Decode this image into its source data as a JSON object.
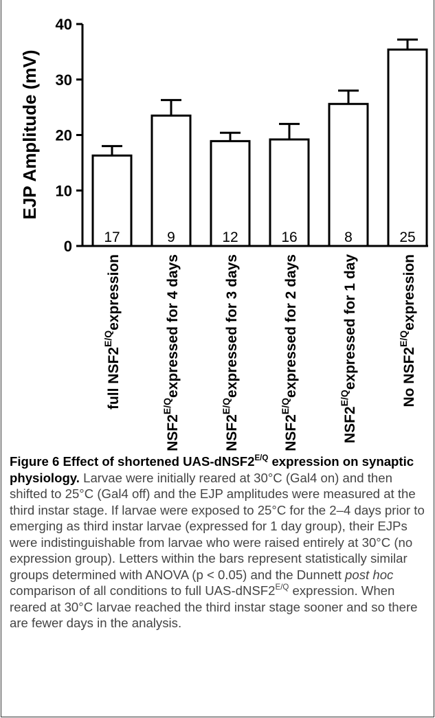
{
  "chart_data": {
    "type": "bar",
    "ylabel": "EJP Amplitude (mV)",
    "ylim": [
      0,
      40
    ],
    "yticks": [
      "0",
      "10",
      "20",
      "30",
      "40"
    ],
    "categories": [
      {
        "main": "full NSF2",
        "sup": "E/Q",
        "rest": "expression"
      },
      {
        "main": "NSF2",
        "sup": "E/Q",
        "rest": "expressed for 4 days"
      },
      {
        "main": "NSF2",
        "sup": "E/Q",
        "rest": "expressed for 3 days"
      },
      {
        "main": "NSF2",
        "sup": "E/Q",
        "rest": "expressed for 2 days"
      },
      {
        "main": "NSF2",
        "sup": "E/Q",
        "rest": "expressed for 1 day"
      },
      {
        "main": "No NSF2",
        "sup": "E/Q",
        "rest": "expression"
      }
    ],
    "values": [
      16.3,
      23.5,
      18.9,
      19.2,
      25.6,
      35.4
    ],
    "errors": [
      1.7,
      2.8,
      1.5,
      2.8,
      2.4,
      1.8
    ],
    "bar_labels": [
      "17",
      "9",
      "12",
      "16",
      "8",
      "25"
    ],
    "grid": false,
    "bar_fill": "#ffffff",
    "bar_stroke": "#000000"
  },
  "caption": {
    "label": "Figure 6",
    "title_pre": "Effect of shortened UAS-dNSF2",
    "title_sup": "E/Q",
    "title_post": "expression on synaptic physiology.",
    "body_1": "Larvae were initially reared at 30°C (Gal4 on) and then shifted to 25°C (Gal4 off) and the EJP amplitudes were measured at the third instar stage. If larvae were exposed to 25°C for the 2–4 days prior to emerging as third instar larvae (expressed for 1 day group), their EJPs were indistinguishable from larvae who were raised entirely at 30°C (no expression group). Letters within the bars represent statistically similar groups determined with ANOVA (p < 0.05) and the Dunnett",
    "body_italic": "post hoc",
    "body_2": "comparison of all conditions to full UAS-dNSF2",
    "body_sup": "E/Q",
    "body_3": "expression. When reared at 30°C larvae reached the third instar stage sooner and so there are fewer days in the analysis."
  }
}
